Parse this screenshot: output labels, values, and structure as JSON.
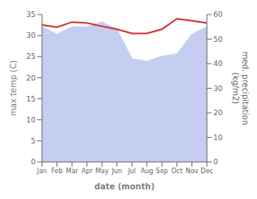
{
  "chart_data": {
    "type": "line",
    "categories": [
      "Jan",
      "Feb",
      "Mar",
      "Apr",
      "May",
      "Jun",
      "Jul",
      "Aug",
      "Sep",
      "Oct",
      "Nov",
      "Dec"
    ],
    "series": [
      {
        "type": "line",
        "color": "#cc3333",
        "values": [
          32.5,
          32.0,
          33.2,
          33.0,
          32.2,
          31.5,
          30.5,
          30.5,
          31.5,
          34.0,
          33.5,
          33.0
        ]
      },
      {
        "type": "area",
        "color": "#c5cef0",
        "axis": "y2",
        "values": [
          55,
          52,
          55,
          55,
          57,
          54,
          42,
          41,
          43,
          44,
          52,
          55
        ]
      }
    ],
    "xlabel": "date (month)",
    "ylabel": "max temp (C)",
    "y2label": "med. precipitation\n(kg/m2)",
    "ylim": [
      0,
      35
    ],
    "yticks": [
      0,
      5,
      10,
      15,
      20,
      25,
      30,
      35
    ],
    "y2lim": [
      0,
      60
    ],
    "y2ticks": [
      0,
      10,
      20,
      30,
      40,
      50,
      60
    ],
    "grid": false
  }
}
